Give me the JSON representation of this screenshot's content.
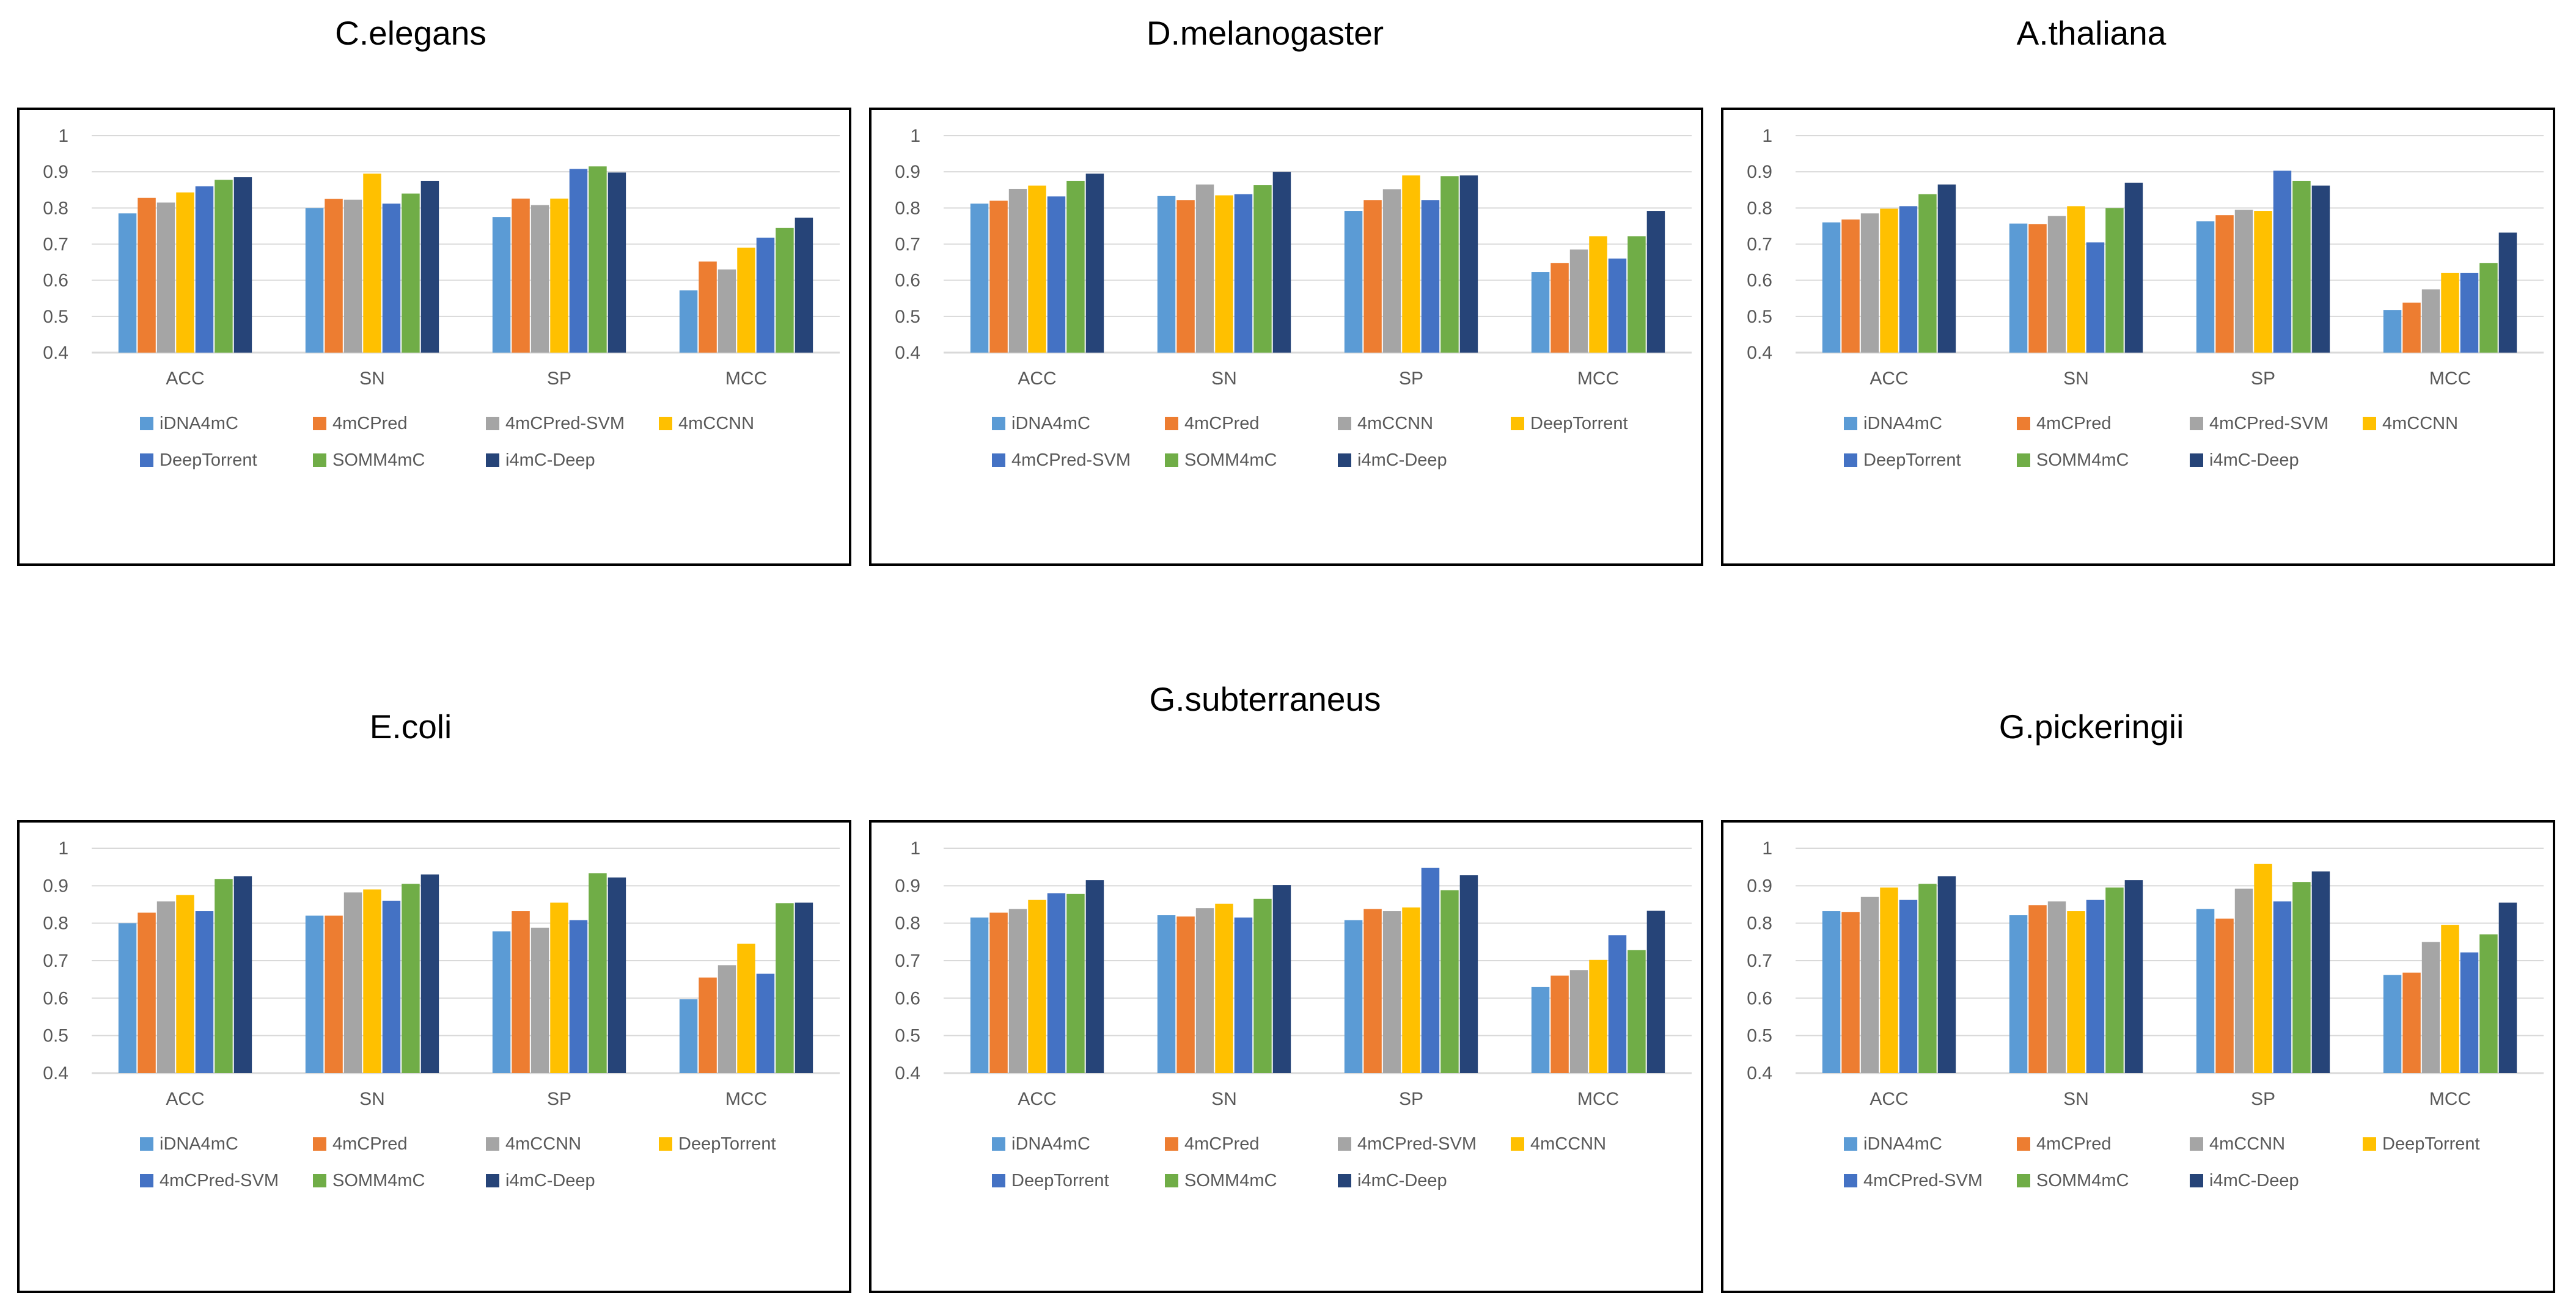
{
  "chart_data": [
    {
      "type": "bar",
      "title": "C.elegans",
      "categories": [
        "ACC",
        "SN",
        "SP",
        "MCC"
      ],
      "ylim": [
        0.4,
        1
      ],
      "yticks": [
        "0.4",
        "0.5",
        "0.6",
        "0.7",
        "0.8",
        "0.9",
        "1"
      ],
      "series": [
        {
          "name": "iDNA4mC",
          "color": "#5B9BD5",
          "values": [
            0.785,
            0.8,
            0.775,
            0.572
          ]
        },
        {
          "name": "4mCPred",
          "color": "#ED7D31",
          "values": [
            0.828,
            0.825,
            0.826,
            0.652
          ]
        },
        {
          "name": "4mCPred-SVM",
          "color": "#A5A5A5",
          "values": [
            0.815,
            0.823,
            0.808,
            0.63
          ]
        },
        {
          "name": "4mCCNN",
          "color": "#FFC000",
          "values": [
            0.843,
            0.895,
            0.826,
            0.69
          ]
        },
        {
          "name": "DeepTorrent",
          "color": "#4472C4",
          "values": [
            0.86,
            0.812,
            0.908,
            0.718
          ]
        },
        {
          "name": "SOMM4mC",
          "color": "#70AD47",
          "values": [
            0.878,
            0.84,
            0.915,
            0.745
          ]
        },
        {
          "name": "i4mC-Deep",
          "color": "#264478",
          "values": [
            0.885,
            0.875,
            0.898,
            0.773
          ]
        }
      ],
      "legend_rows": [
        [
          0,
          1,
          2,
          3
        ],
        [
          4,
          5,
          6
        ]
      ]
    },
    {
      "type": "bar",
      "title": "D.melanogaster",
      "categories": [
        "ACC",
        "SN",
        "SP",
        "MCC"
      ],
      "ylim": [
        0.4,
        1
      ],
      "yticks": [
        "0.4",
        "0.5",
        "0.6",
        "0.7",
        "0.8",
        "0.9",
        "1"
      ],
      "series": [
        {
          "name": "iDNA4mC",
          "color": "#5B9BD5",
          "values": [
            0.812,
            0.833,
            0.792,
            0.623
          ]
        },
        {
          "name": "4mCPred",
          "color": "#ED7D31",
          "values": [
            0.82,
            0.822,
            0.822,
            0.648
          ]
        },
        {
          "name": "4mCCNN",
          "color": "#A5A5A5",
          "values": [
            0.853,
            0.865,
            0.852,
            0.685
          ]
        },
        {
          "name": "DeepTorrent",
          "color": "#FFC000",
          "values": [
            0.862,
            0.835,
            0.89,
            0.722
          ]
        },
        {
          "name": "4mCPred-SVM",
          "color": "#4472C4",
          "values": [
            0.832,
            0.838,
            0.822,
            0.66
          ]
        },
        {
          "name": "SOMM4mC",
          "color": "#70AD47",
          "values": [
            0.875,
            0.863,
            0.888,
            0.722
          ]
        },
        {
          "name": "i4mC-Deep",
          "color": "#264478",
          "values": [
            0.895,
            0.9,
            0.89,
            0.792
          ]
        }
      ],
      "legend_rows": [
        [
          0,
          1,
          2,
          3
        ],
        [
          4,
          5,
          6
        ]
      ]
    },
    {
      "type": "bar",
      "title": "A.thaliana",
      "categories": [
        "ACC",
        "SN",
        "SP",
        "MCC"
      ],
      "ylim": [
        0.4,
        1
      ],
      "yticks": [
        "0.4",
        "0.5",
        "0.6",
        "0.7",
        "0.8",
        "0.9",
        "1"
      ],
      "series": [
        {
          "name": "iDNA4mC",
          "color": "#5B9BD5",
          "values": [
            0.76,
            0.757,
            0.763,
            0.518
          ]
        },
        {
          "name": "4mCPred",
          "color": "#ED7D31",
          "values": [
            0.768,
            0.755,
            0.78,
            0.538
          ]
        },
        {
          "name": "4mCPred-SVM",
          "color": "#A5A5A5",
          "values": [
            0.785,
            0.778,
            0.795,
            0.575
          ]
        },
        {
          "name": "4mCCNN",
          "color": "#FFC000",
          "values": [
            0.798,
            0.805,
            0.792,
            0.62
          ]
        },
        {
          "name": "DeepTorrent",
          "color": "#4472C4",
          "values": [
            0.805,
            0.705,
            0.903,
            0.62
          ]
        },
        {
          "name": "SOMM4mC",
          "color": "#70AD47",
          "values": [
            0.838,
            0.8,
            0.875,
            0.648
          ]
        },
        {
          "name": "i4mC-Deep",
          "color": "#264478",
          "values": [
            0.865,
            0.87,
            0.862,
            0.732
          ]
        }
      ],
      "legend_rows": [
        [
          0,
          1,
          2,
          3
        ],
        [
          4,
          5,
          6
        ]
      ]
    },
    {
      "type": "bar",
      "title": "E.coli",
      "categories": [
        "ACC",
        "SN",
        "SP",
        "MCC"
      ],
      "ylim": [
        0.4,
        1
      ],
      "yticks": [
        "0.4",
        "0.5",
        "0.6",
        "0.7",
        "0.8",
        "0.9",
        "1"
      ],
      "series": [
        {
          "name": "iDNA4mC",
          "color": "#5B9BD5",
          "values": [
            0.8,
            0.82,
            0.778,
            0.597
          ]
        },
        {
          "name": "4mCPred",
          "color": "#ED7D31",
          "values": [
            0.828,
            0.82,
            0.832,
            0.655
          ]
        },
        {
          "name": "4mCCNN",
          "color": "#A5A5A5",
          "values": [
            0.858,
            0.882,
            0.788,
            0.688
          ]
        },
        {
          "name": "DeepTorrent",
          "color": "#FFC000",
          "values": [
            0.875,
            0.89,
            0.855,
            0.745
          ]
        },
        {
          "name": "4mCPred-SVM",
          "color": "#4472C4",
          "values": [
            0.832,
            0.86,
            0.808,
            0.665
          ]
        },
        {
          "name": "SOMM4mC",
          "color": "#70AD47",
          "values": [
            0.918,
            0.905,
            0.933,
            0.853
          ]
        },
        {
          "name": "i4mC-Deep",
          "color": "#264478",
          "values": [
            0.925,
            0.93,
            0.922,
            0.855
          ]
        }
      ],
      "legend_rows": [
        [
          0,
          1,
          2,
          3
        ],
        [
          4,
          5,
          6
        ]
      ]
    },
    {
      "type": "bar",
      "title": "G.subterraneus",
      "categories": [
        "ACC",
        "SN",
        "SP",
        "MCC"
      ],
      "ylim": [
        0.4,
        1
      ],
      "yticks": [
        "0.4",
        "0.5",
        "0.6",
        "0.7",
        "0.8",
        "0.9",
        "1"
      ],
      "series": [
        {
          "name": "iDNA4mC",
          "color": "#5B9BD5",
          "values": [
            0.815,
            0.822,
            0.808,
            0.63
          ]
        },
        {
          "name": "4mCPred",
          "color": "#ED7D31",
          "values": [
            0.828,
            0.818,
            0.838,
            0.66
          ]
        },
        {
          "name": "4mCPred-SVM",
          "color": "#A5A5A5",
          "values": [
            0.838,
            0.84,
            0.832,
            0.675
          ]
        },
        {
          "name": "4mCCNN",
          "color": "#FFC000",
          "values": [
            0.862,
            0.852,
            0.842,
            0.702
          ]
        },
        {
          "name": "DeepTorrent",
          "color": "#4472C4",
          "values": [
            0.88,
            0.815,
            0.948,
            0.768
          ]
        },
        {
          "name": "SOMM4mC",
          "color": "#70AD47",
          "values": [
            0.878,
            0.865,
            0.888,
            0.728
          ]
        },
        {
          "name": "i4mC-Deep",
          "color": "#264478",
          "values": [
            0.915,
            0.902,
            0.928,
            0.833
          ]
        }
      ],
      "legend_rows": [
        [
          0,
          1,
          2,
          3
        ],
        [
          4,
          5,
          6
        ]
      ]
    },
    {
      "type": "bar",
      "title": "G.pickeringii",
      "categories": [
        "ACC",
        "SN",
        "SP",
        "MCC"
      ],
      "ylim": [
        0.4,
        1
      ],
      "yticks": [
        "0.4",
        "0.5",
        "0.6",
        "0.7",
        "0.8",
        "0.9",
        "1"
      ],
      "series": [
        {
          "name": "iDNA4mC",
          "color": "#5B9BD5",
          "values": [
            0.832,
            0.822,
            0.838,
            0.662
          ]
        },
        {
          "name": "4mCPred",
          "color": "#ED7D31",
          "values": [
            0.83,
            0.848,
            0.812,
            0.668
          ]
        },
        {
          "name": "4mCCNN",
          "color": "#A5A5A5",
          "values": [
            0.87,
            0.858,
            0.892,
            0.75
          ]
        },
        {
          "name": "DeepTorrent",
          "color": "#FFC000",
          "values": [
            0.895,
            0.832,
            0.958,
            0.795
          ]
        },
        {
          "name": "4mCPred-SVM",
          "color": "#4472C4",
          "values": [
            0.862,
            0.862,
            0.858,
            0.722
          ]
        },
        {
          "name": "SOMM4mC",
          "color": "#70AD47",
          "values": [
            0.905,
            0.895,
            0.91,
            0.77
          ]
        },
        {
          "name": "i4mC-Deep",
          "color": "#264478",
          "values": [
            0.925,
            0.915,
            0.938,
            0.855
          ]
        }
      ],
      "legend_rows": [
        [
          0,
          1,
          2,
          3
        ],
        [
          4,
          5,
          6
        ]
      ]
    }
  ]
}
